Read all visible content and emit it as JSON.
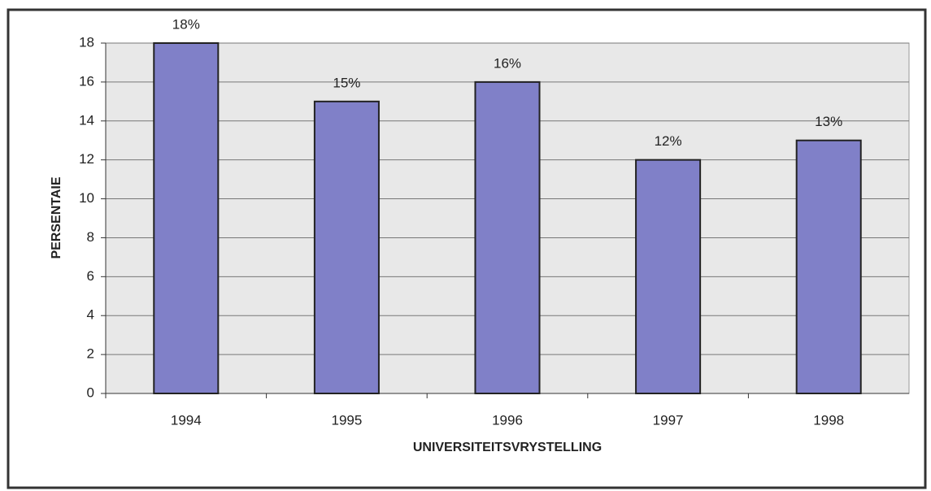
{
  "chart_data": {
    "type": "bar",
    "categories": [
      "1994",
      "1995",
      "1996",
      "1997",
      "1998"
    ],
    "values": [
      18,
      15,
      16,
      12,
      13
    ],
    "value_labels": [
      "18%",
      "15%",
      "16%",
      "12%",
      "13%"
    ],
    "color": "#8080c8",
    "xlabel": "UNIVERSITEITSVRYSTELLING",
    "ylabel": "PERSENTAIE",
    "ylim": [
      0,
      18
    ],
    "yticks": [
      0,
      2,
      4,
      6,
      8,
      10,
      12,
      14,
      16,
      18
    ],
    "grid": true
  }
}
